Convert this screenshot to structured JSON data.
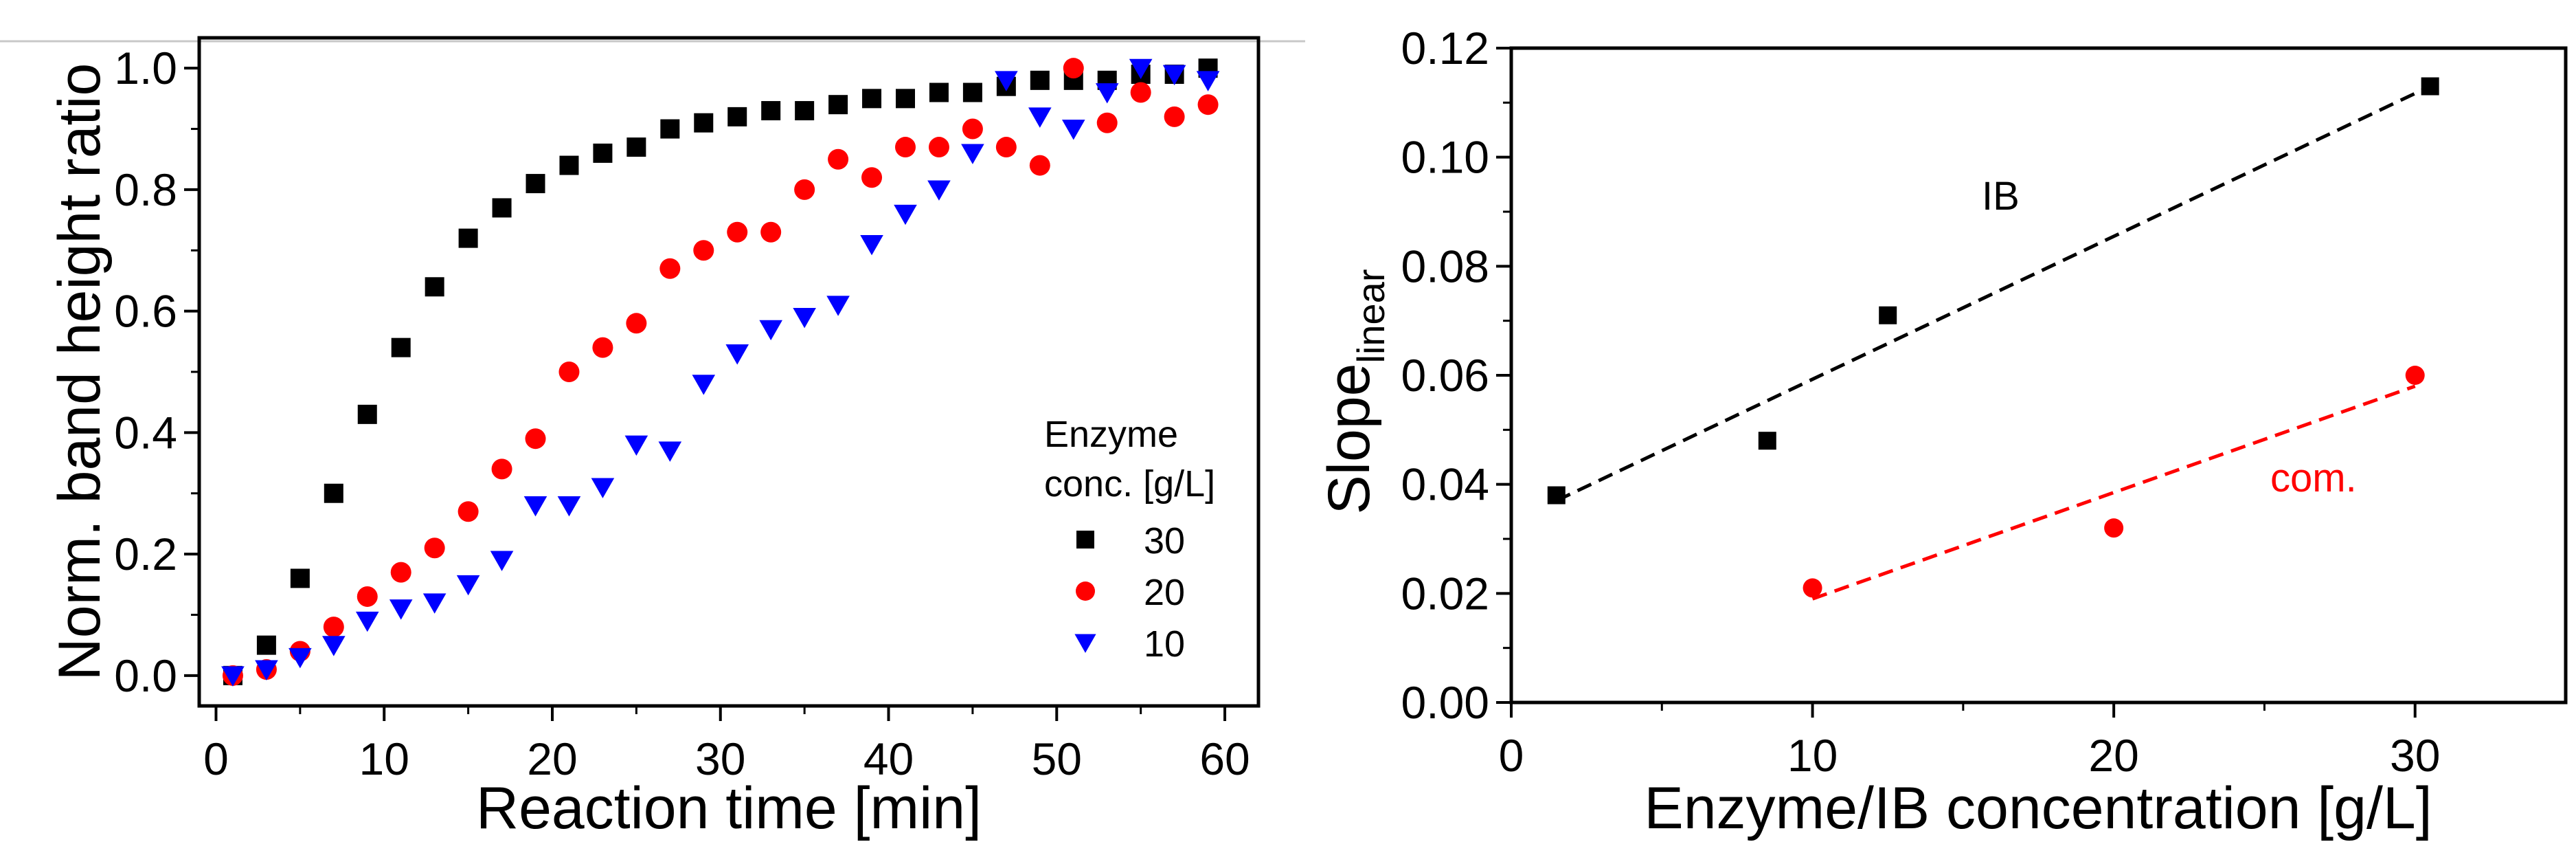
{
  "chart_data": [
    {
      "type": "scatter",
      "xlabel": "Reaction time [min]",
      "ylabel": "Norm. band height ratio",
      "xlim": [
        -1,
        62
      ],
      "ylim": [
        -0.05,
        1.05
      ],
      "xticks": [
        "0",
        "10",
        "20",
        "30",
        "40",
        "50",
        "60"
      ],
      "yticks": [
        "0.0",
        "0.2",
        "0.4",
        "0.6",
        "0.8",
        "1.0"
      ],
      "legend": {
        "title_line1": "Enzyme",
        "title_line2": "conc. [g/L]",
        "position": "bottom-right"
      },
      "series": [
        {
          "name": "30",
          "marker": "square",
          "color": "#000000",
          "x": [
            1,
            3,
            5,
            7,
            9,
            11,
            13,
            15,
            17,
            19,
            21,
            23,
            25,
            27,
            29,
            31,
            33,
            35,
            37,
            39,
            41,
            43,
            45,
            47,
            49,
            51,
            53,
            55,
            57,
            59
          ],
          "y": [
            0.0,
            0.05,
            0.16,
            0.3,
            0.43,
            0.54,
            0.64,
            0.72,
            0.77,
            0.81,
            0.84,
            0.86,
            0.87,
            0.9,
            0.91,
            0.92,
            0.93,
            0.93,
            0.94,
            0.95,
            0.95,
            0.96,
            0.96,
            0.97,
            0.98,
            0.98,
            0.98,
            0.99,
            0.99,
            1.0
          ]
        },
        {
          "name": "20",
          "marker": "circle",
          "color": "#ff0000",
          "x": [
            1,
            3,
            5,
            7,
            9,
            11,
            13,
            15,
            17,
            19,
            21,
            23,
            25,
            27,
            29,
            31,
            33,
            35,
            37,
            39,
            41,
            43,
            45,
            47,
            49,
            51,
            53,
            55,
            57,
            59
          ],
          "y": [
            0.0,
            0.01,
            0.04,
            0.08,
            0.13,
            0.17,
            0.21,
            0.27,
            0.34,
            0.39,
            0.5,
            0.54,
            0.58,
            0.67,
            0.7,
            0.73,
            0.73,
            0.8,
            0.85,
            0.82,
            0.87,
            0.87,
            0.9,
            0.87,
            0.84,
            1.0,
            0.91,
            0.96,
            0.92,
            0.94
          ]
        },
        {
          "name": "10",
          "marker": "triangle-down",
          "color": "#0000ff",
          "x": [
            1,
            3,
            5,
            7,
            9,
            11,
            13,
            15,
            17,
            19,
            21,
            23,
            25,
            27,
            29,
            31,
            33,
            35,
            37,
            39,
            41,
            43,
            45,
            47,
            49,
            51,
            53,
            55,
            57,
            59
          ],
          "y": [
            0.0,
            0.01,
            0.03,
            0.05,
            0.09,
            0.11,
            0.12,
            0.15,
            0.19,
            0.28,
            0.28,
            0.31,
            0.38,
            0.37,
            0.48,
            0.53,
            0.57,
            0.59,
            0.61,
            0.71,
            0.76,
            0.8,
            0.86,
            0.98,
            0.92,
            0.9,
            0.96,
            1.0,
            0.99,
            0.98
          ]
        }
      ]
    },
    {
      "type": "scatter",
      "xlabel": "Enzyme/IB concentration [g/L]",
      "ylabel_main": "Slope",
      "ylabel_sub": "linear",
      "xlim": [
        0,
        35
      ],
      "ylim": [
        0,
        0.12
      ],
      "xticks": [
        "0",
        "10",
        "20",
        "30"
      ],
      "yticks": [
        "0.00",
        "0.02",
        "0.04",
        "0.06",
        "0.08",
        "0.10",
        "0.12"
      ],
      "series": [
        {
          "name": "IB",
          "marker": "square",
          "color": "#000000",
          "x": [
            1.5,
            8.5,
            12.5,
            30.5
          ],
          "y": [
            0.038,
            0.048,
            0.071,
            0.113
          ],
          "fit": {
            "x": [
              1.5,
              30.5
            ],
            "y": [
              0.037,
              0.113
            ]
          }
        },
        {
          "name": "com.",
          "marker": "circle",
          "color": "#ff0000",
          "x": [
            10,
            20,
            30
          ],
          "y": [
            0.021,
            0.032,
            0.06
          ],
          "fit": {
            "x": [
              10,
              30
            ],
            "y": [
              0.019,
              0.058
            ]
          }
        }
      ]
    }
  ]
}
